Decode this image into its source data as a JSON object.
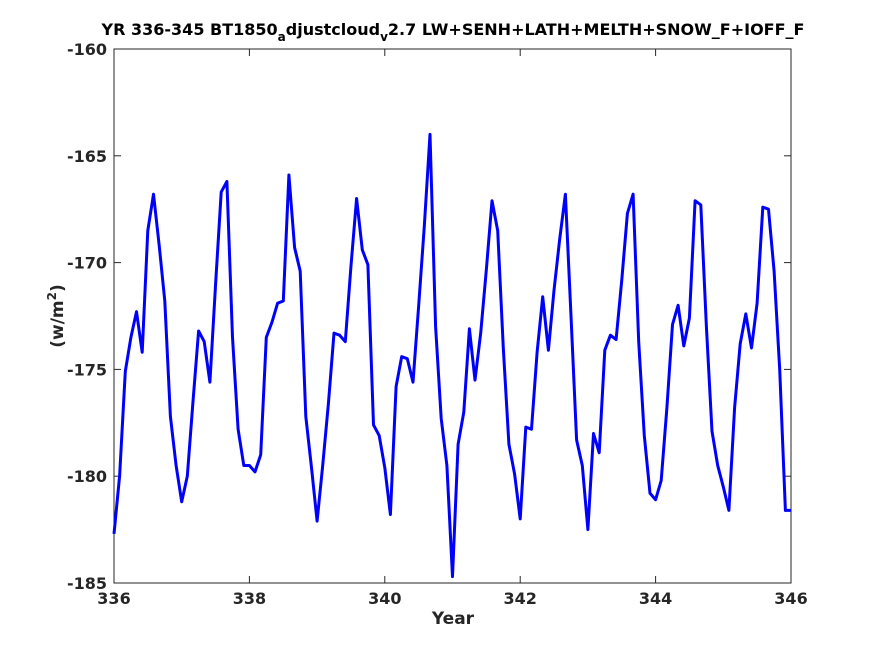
{
  "chart_data": {
    "type": "line",
    "title": {
      "prefix": "YR 336-345 BT1850",
      "sub1": "a",
      "mid": "djustcloud",
      "sub2": "v",
      "suffix": "2.7 LW+SENH+LATH+MELTH+SNOW_F+IOFF_F"
    },
    "xlabel": "Year",
    "ylabel": {
      "main": "(w/m",
      "sup": "2",
      "close": ")"
    },
    "xlim": [
      336,
      346
    ],
    "ylim": [
      -185,
      -160
    ],
    "xticks": [
      336,
      338,
      340,
      342,
      344,
      346
    ],
    "yticks": [
      -185,
      -180,
      -175,
      -170,
      -165,
      -160
    ],
    "grid": false,
    "line_color": "#0000ff",
    "series": [
      {
        "x": [
          336.0,
          336.083,
          336.167,
          336.25,
          336.333,
          336.417,
          336.5,
          336.583,
          336.667,
          336.75,
          336.833,
          336.917,
          337.0,
          337.083,
          337.167,
          337.25,
          337.333,
          337.417,
          337.5,
          337.583,
          337.667,
          337.75,
          337.833,
          337.917,
          338.0,
          338.083,
          338.167,
          338.25,
          338.333,
          338.417,
          338.5,
          338.583,
          338.667,
          338.75,
          338.833,
          338.917,
          339.0,
          339.083,
          339.167,
          339.25,
          339.333,
          339.417,
          339.5,
          339.583,
          339.667,
          339.75,
          339.833,
          339.917,
          340.0,
          340.083,
          340.167,
          340.25,
          340.333,
          340.417,
          340.5,
          340.583,
          340.667,
          340.75,
          340.833,
          340.917,
          341.0,
          341.083,
          341.167,
          341.25,
          341.333,
          341.417,
          341.5,
          341.583,
          341.667,
          341.75,
          341.833,
          341.917,
          342.0,
          342.083,
          342.167,
          342.25,
          342.333,
          342.417,
          342.5,
          342.583,
          342.667,
          342.75,
          342.833,
          342.917,
          343.0,
          343.083,
          343.167,
          343.25,
          343.333,
          343.417,
          343.5,
          343.583,
          343.667,
          343.75,
          343.833,
          343.917,
          344.0,
          344.083,
          344.167,
          344.25,
          344.333,
          344.417,
          344.5,
          344.583,
          344.667,
          344.75,
          344.833,
          344.917,
          345.0,
          345.083,
          345.167,
          345.25,
          345.333,
          345.417,
          345.5,
          345.583,
          345.667,
          345.75,
          345.833,
          345.917,
          346.0
        ],
        "y": [
          -182.7,
          -180.0,
          -175.1,
          -173.5,
          -172.3,
          -174.2,
          -168.5,
          -166.8,
          -169.2,
          -171.8,
          -177.2,
          -179.5,
          -181.2,
          -180.0,
          -176.5,
          -173.2,
          -173.7,
          -175.6,
          -171.0,
          -166.7,
          -166.2,
          -173.5,
          -177.8,
          -179.5,
          -179.5,
          -179.8,
          -179.0,
          -173.5,
          -172.8,
          -171.9,
          -171.8,
          -165.9,
          -169.3,
          -170.4,
          -177.2,
          -179.6,
          -182.1,
          -179.5,
          -176.6,
          -173.3,
          -173.4,
          -173.7,
          -170.2,
          -167.0,
          -169.4,
          -170.1,
          -177.6,
          -178.1,
          -179.6,
          -181.8,
          -175.8,
          -174.4,
          -174.5,
          -175.6,
          -172.0,
          -168.3,
          -164.0,
          -173.0,
          -177.3,
          -179.5,
          -184.7,
          -178.5,
          -177.0,
          -173.1,
          -175.5,
          -173.3,
          -170.3,
          -167.1,
          -168.5,
          -174.0,
          -178.5,
          -179.9,
          -182.0,
          -177.7,
          -177.8,
          -174.2,
          -171.6,
          -174.1,
          -171.3,
          -168.9,
          -166.8,
          -172.5,
          -178.3,
          -179.5,
          -182.5,
          -178.0,
          -178.9,
          -174.1,
          -173.4,
          -173.6,
          -170.8,
          -167.7,
          -166.8,
          -173.7,
          -178.1,
          -180.8,
          -181.1,
          -180.2,
          -176.8,
          -172.9,
          -172.0,
          -173.9,
          -172.6,
          -167.1,
          -167.3,
          -173.0,
          -177.9,
          -179.5,
          -180.5,
          -181.6,
          -176.8,
          -173.8,
          -172.4,
          -174.0,
          -171.9,
          -167.4,
          -167.5,
          -170.4,
          -175.0,
          -181.6,
          -181.6
        ]
      }
    ]
  }
}
